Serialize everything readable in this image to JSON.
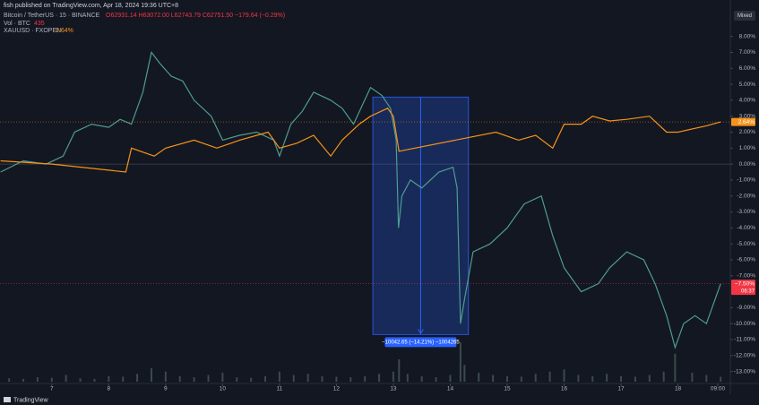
{
  "header": "fish published on TradingView.com, Apr 18, 2024 19:36 UTC+8",
  "legend": {
    "symbol": "Bitcoin / TetherUS · 15 · BINANCE",
    "ohlc": "O62931.14 H63072.00 L62743.79 C62751.50 −179.64 (−0.29%)",
    "vol_name": "Vol · BTC",
    "vol_value": "435",
    "gold_name": "XAUUSD · FXOPEN",
    "gold_value": "2.64%"
  },
  "scale_mode": "Mixed",
  "brand": "TradingView",
  "chart_data": {
    "type": "line",
    "xlim": [
      6.09,
      18.92
    ],
    "xticks": [
      7,
      8,
      9,
      10,
      11,
      12,
      13,
      14,
      15,
      16,
      17,
      18,
      {
        "value": 18.7,
        "label": "09:00"
      }
    ],
    "ylim": [
      10.28,
      -13.75
    ],
    "yticks": [
      {
        "value": 8,
        "label": "8.00%"
      },
      {
        "value": 7,
        "label": "7.00%"
      },
      {
        "value": 6,
        "label": "6.00%"
      },
      {
        "value": 5,
        "label": "5.00%"
      },
      {
        "value": 4,
        "label": "4.00%"
      },
      {
        "value": 3,
        "label": "3.00%"
      },
      {
        "value": 2,
        "label": "2.00%"
      },
      {
        "value": 1,
        "label": "1.00%"
      },
      {
        "value": 0,
        "label": "0.00%"
      },
      {
        "value": -1,
        "label": "-1.00%"
      },
      {
        "value": -2,
        "label": "-2.00%"
      },
      {
        "value": -3,
        "label": "-3.00%"
      },
      {
        "value": -4,
        "label": "-4.00%"
      },
      {
        "value": -5,
        "label": "-5.00%"
      },
      {
        "value": -6,
        "label": "-6.00%"
      },
      {
        "value": -7,
        "label": "-7.00%"
      },
      {
        "value": -9,
        "label": "-9.00%"
      },
      {
        "value": -10,
        "label": "-10.00%"
      },
      {
        "value": -11,
        "label": "-11.00%"
      },
      {
        "value": -12,
        "label": "-12.00%"
      },
      {
        "value": -13,
        "label": "-13.00%"
      }
    ],
    "series": [
      {
        "name": "Bitcoin / TetherUS",
        "color": "#4e9c8f",
        "x": [
          6.1,
          6.5,
          6.9,
          7.2,
          7.4,
          7.7,
          8.0,
          8.2,
          8.4,
          8.6,
          8.75,
          8.9,
          9.1,
          9.3,
          9.5,
          9.8,
          10.0,
          10.3,
          10.6,
          10.9,
          11.0,
          11.2,
          11.4,
          11.6,
          11.9,
          12.1,
          12.3,
          12.6,
          12.8,
          12.95,
          13.05,
          13.09,
          13.15,
          13.3,
          13.5,
          13.8,
          14.05,
          14.12,
          14.18,
          14.25,
          14.4,
          14.7,
          15.0,
          15.3,
          15.6,
          15.8,
          16.0,
          16.3,
          16.6,
          16.8,
          17.1,
          17.4,
          17.6,
          17.8,
          17.95,
          18.1,
          18.3,
          18.5,
          18.75
        ],
        "values": [
          -0.5,
          0.2,
          0.0,
          0.5,
          2.0,
          2.5,
          2.3,
          2.8,
          2.5,
          4.5,
          7.0,
          6.3,
          5.5,
          5.2,
          4.0,
          3.0,
          1.5,
          1.8,
          2.0,
          1.5,
          0.5,
          2.5,
          3.3,
          4.5,
          4.0,
          3.5,
          2.5,
          4.8,
          4.3,
          3.5,
          1.5,
          -4.0,
          -2.0,
          -1.0,
          -1.5,
          -0.5,
          -0.2,
          -1.5,
          -10.0,
          -8.5,
          -5.5,
          -5.0,
          -4.0,
          -2.5,
          -2.0,
          -4.5,
          -6.5,
          -8.0,
          -7.5,
          -6.5,
          -5.5,
          -6.0,
          -7.5,
          -9.5,
          -11.5,
          -10.0,
          -9.5,
          -10.0,
          -7.5
        ]
      },
      {
        "name": "XAUUSD",
        "color": "#f7931a",
        "x": [
          6.1,
          7.0,
          8.3,
          8.4,
          8.8,
          9.0,
          9.5,
          9.9,
          10.3,
          10.8,
          11.0,
          11.3,
          11.6,
          11.9,
          12.1,
          12.4,
          12.6,
          12.9,
          13.0,
          13.1,
          14.8,
          15.2,
          15.5,
          15.8,
          16.0,
          16.3,
          16.5,
          16.8,
          17.1,
          17.5,
          17.8,
          18.0,
          18.5,
          18.75
        ],
        "values": [
          0.2,
          0.0,
          -0.5,
          1.0,
          0.5,
          1.0,
          1.5,
          1.0,
          1.5,
          2.0,
          1.0,
          1.3,
          1.8,
          0.5,
          1.5,
          2.5,
          3.0,
          3.5,
          3.0,
          0.8,
          2.0,
          1.5,
          1.8,
          1.0,
          2.5,
          2.5,
          3.0,
          2.7,
          2.8,
          3.0,
          2.0,
          2.0,
          2.4,
          2.64
        ]
      }
    ],
    "volume": {
      "color": "#3b4a4a",
      "ylim": [
        0,
        4000
      ],
      "x": [
        6.25,
        6.5,
        6.75,
        7.0,
        7.25,
        7.5,
        7.75,
        8.0,
        8.25,
        8.5,
        8.75,
        9.0,
        9.25,
        9.5,
        9.75,
        10.0,
        10.25,
        10.5,
        10.75,
        11.0,
        11.25,
        11.5,
        11.75,
        12.0,
        12.25,
        12.5,
        12.75,
        13.0,
        13.1,
        13.25,
        13.5,
        13.75,
        14.0,
        14.18,
        14.25,
        14.5,
        14.75,
        15.0,
        15.25,
        15.5,
        15.75,
        16.0,
        16.25,
        16.5,
        16.75,
        17.0,
        17.25,
        17.5,
        17.75,
        17.95,
        18.25,
        18.5,
        18.75
      ],
      "values": [
        300,
        250,
        400,
        350,
        600,
        300,
        250,
        500,
        450,
        700,
        1200,
        900,
        500,
        400,
        600,
        800,
        400,
        350,
        500,
        900,
        600,
        700,
        500,
        450,
        400,
        500,
        700,
        900,
        2000,
        700,
        500,
        400,
        600,
        3500,
        1500,
        800,
        600,
        500,
        450,
        700,
        900,
        1100,
        600,
        500,
        700,
        500,
        450,
        600,
        900,
        2500,
        800,
        600,
        435
      ]
    },
    "zero_line": 0,
    "measure": {
      "x": [
        12.64,
        14.32
      ],
      "y": [
        4.2,
        -10.68
      ],
      "label": "−10042.65 (−14.21%) −1004265"
    },
    "last_labels": [
      {
        "value": 2.64,
        "label": "2.64%",
        "color": "#f7931a"
      },
      {
        "value": -7.5,
        "label": "−7.50%",
        "sub": "06:37",
        "color": "#f23645"
      }
    ]
  }
}
